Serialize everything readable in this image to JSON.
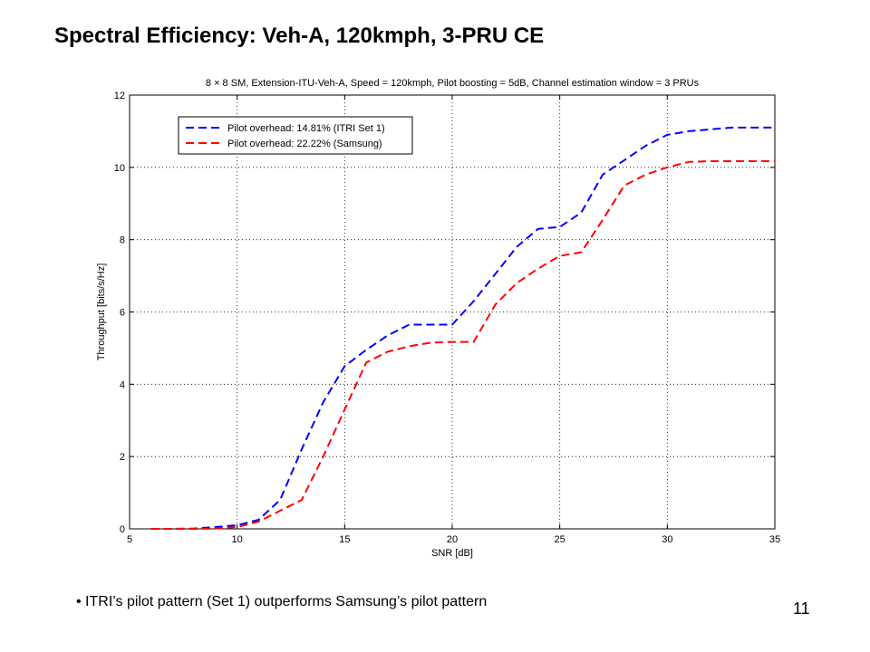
{
  "slide": {
    "title": "Spectral Efficiency: Veh-A, 120kmph, 3-PRU CE",
    "bullet": "ITRI’s pilot pattern (Set 1) outperforms Samsung’s pilot pattern",
    "page_number": "11"
  },
  "chart_data": {
    "type": "line",
    "title": "8 × 8  SM, Extension-ITU-Veh-A, Speed = 120kmph, Pilot boosting = 5dB, Channel estimation window = 3 PRUs",
    "xlabel": "SNR [dB]",
    "ylabel": "Throughput [bits/s/Hz]",
    "xlim": [
      5,
      35
    ],
    "ylim": [
      0,
      12
    ],
    "xticks": [
      5,
      10,
      15,
      20,
      25,
      30,
      35
    ],
    "yticks": [
      0,
      2,
      4,
      6,
      8,
      10,
      12
    ],
    "grid": true,
    "legend_position": "top-left",
    "line_style": "dashed",
    "series": [
      {
        "name": "Pilot overhead: 14.81% (ITRI Set 1)",
        "color": "#0000ff",
        "x": [
          6,
          7,
          8,
          9,
          10,
          11,
          12,
          13,
          14,
          15,
          16,
          17,
          18,
          19,
          20,
          21,
          22,
          23,
          24,
          25,
          26,
          27,
          28,
          29,
          30,
          31,
          32,
          33,
          34,
          35
        ],
        "y": [
          0,
          0,
          0.01,
          0.05,
          0.1,
          0.25,
          0.8,
          2.2,
          3.5,
          4.5,
          4.95,
          5.35,
          5.65,
          5.65,
          5.65,
          6.3,
          7.05,
          7.8,
          8.3,
          8.35,
          8.75,
          9.8,
          10.2,
          10.6,
          10.9,
          11.0,
          11.05,
          11.1,
          11.1,
          11.1
        ]
      },
      {
        "name": "Pilot overhead: 22.22% (Samsung)",
        "color": "#ff0000",
        "x": [
          6,
          7,
          8,
          9,
          10,
          11,
          12,
          13,
          14,
          15,
          16,
          17,
          18,
          19,
          20,
          21,
          22,
          23,
          24,
          25,
          26,
          27,
          28,
          29,
          30,
          31,
          32,
          33,
          34,
          35
        ],
        "y": [
          0,
          0,
          0,
          0.01,
          0.05,
          0.2,
          0.5,
          0.8,
          2.0,
          3.3,
          4.6,
          4.9,
          5.05,
          5.15,
          5.17,
          5.17,
          6.2,
          6.8,
          7.2,
          7.55,
          7.65,
          8.55,
          9.5,
          9.8,
          10.0,
          10.15,
          10.17,
          10.17,
          10.17,
          10.17
        ]
      }
    ]
  }
}
